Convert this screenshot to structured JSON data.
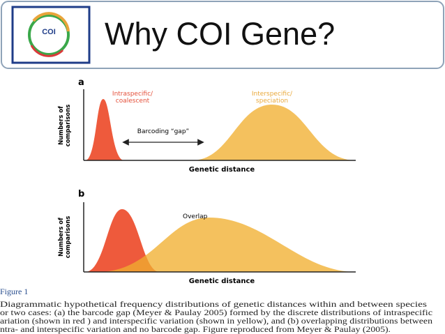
{
  "header": {
    "title": "Why COI Gene?",
    "logo_label": "COI"
  },
  "figure": {
    "panel_a": {
      "label": "a",
      "intraspecific": [
        "Intraspecific/",
        "coalescent"
      ],
      "interspecific": [
        "Interspecific/",
        "speciation"
      ],
      "gap_label": "Barcoding “gap”",
      "y_label": [
        "Numbers of",
        "comparisons"
      ],
      "x_label": "Genetic distance"
    },
    "panel_b": {
      "label": "b",
      "overlap_label": "Overlap",
      "y_label": [
        "Numbers of",
        "comparisons"
      ],
      "x_label": "Genetic distance"
    },
    "caption_title": "Figure 1",
    "caption_lines": [
      "Diagrammatic hypothetical frequency distributions of genetic distances within and between species",
      "or two cases: (a) the barcode gap (Meyer & Paulay 2005) formed by the discrete distributions of intraspecific",
      "ariation (shown in red ) and interspecific variation (shown in yellow), and (b) overlapping distributions between",
      "ntra- and interspecific variation and no barcode gap. Figure reproduced from Meyer & Paulay (2005)."
    ]
  }
}
